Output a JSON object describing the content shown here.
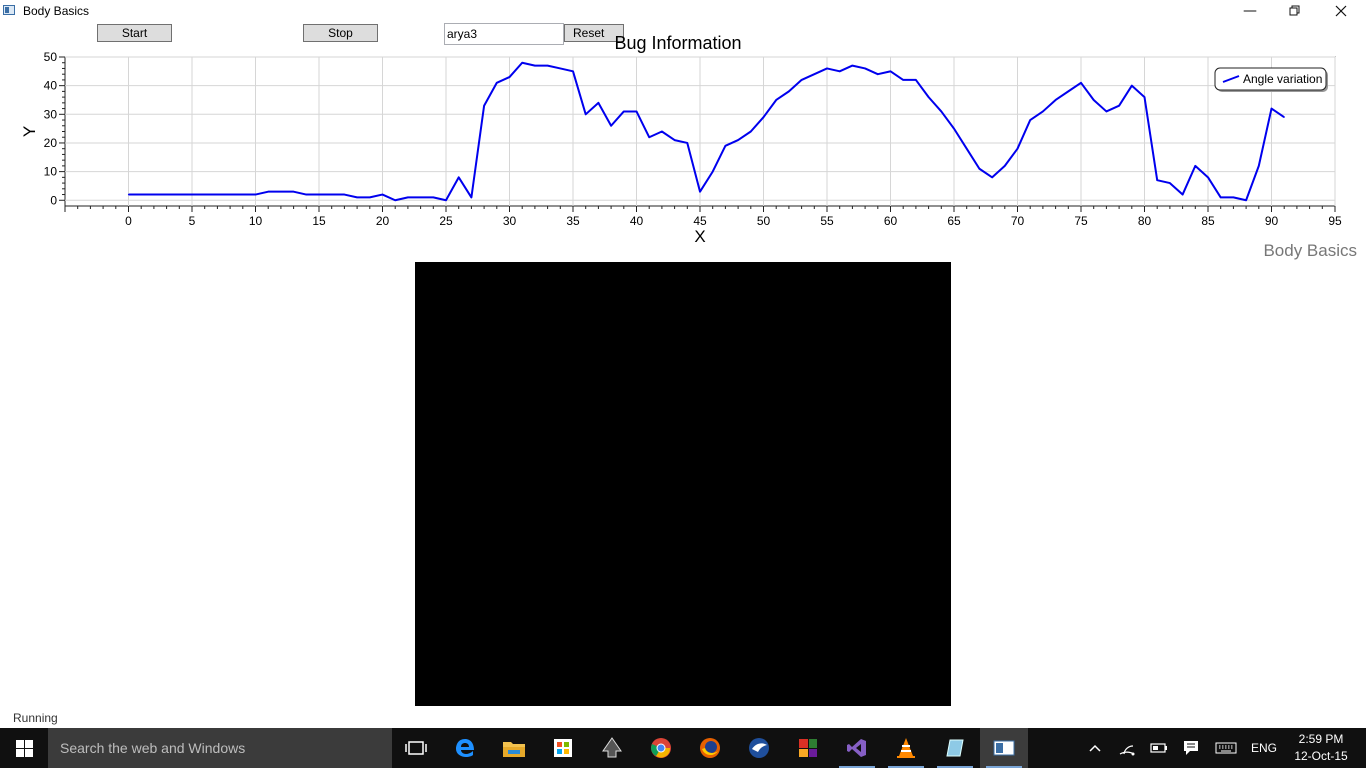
{
  "window": {
    "title": "Body Basics"
  },
  "toolbar": {
    "start_label": "Start",
    "stop_label": "Stop",
    "name_value": "arya3",
    "reset_label": "Reset"
  },
  "chart_data": {
    "type": "line",
    "title": "Bug Information",
    "xlabel": "X",
    "ylabel": "Y",
    "xlim": [
      -5,
      95
    ],
    "ylim": [
      -2,
      50
    ],
    "xticks": [
      0,
      5,
      10,
      15,
      20,
      25,
      30,
      35,
      40,
      45,
      50,
      55,
      60,
      65,
      70,
      75,
      80,
      85,
      90,
      95
    ],
    "yticks": [
      0,
      10,
      20,
      30,
      40,
      50
    ],
    "grid": true,
    "legend_position": "top-right",
    "series": [
      {
        "name": "Angle variation",
        "color": "#0000ee",
        "x": [
          0,
          1,
          2,
          3,
          4,
          5,
          6,
          7,
          8,
          9,
          10,
          11,
          12,
          13,
          14,
          15,
          16,
          17,
          18,
          19,
          20,
          21,
          22,
          23,
          24,
          25,
          26,
          27,
          28,
          29,
          30,
          31,
          32,
          33,
          34,
          35,
          36,
          37,
          38,
          39,
          40,
          41,
          42,
          43,
          44,
          45,
          46,
          47,
          48,
          49,
          50,
          51,
          52,
          53,
          54,
          55,
          56,
          57,
          58,
          59,
          60,
          61,
          62,
          63,
          64,
          65,
          66,
          67,
          68,
          69,
          70,
          71,
          72,
          73,
          74,
          75,
          76,
          77,
          78,
          79,
          80,
          81,
          82,
          83,
          84,
          85,
          86,
          87,
          88,
          89,
          90,
          91
        ],
        "y": [
          2,
          2,
          2,
          2,
          2,
          2,
          2,
          2,
          2,
          2,
          2,
          3,
          3,
          3,
          2,
          2,
          2,
          2,
          1,
          1,
          2,
          0,
          1,
          1,
          1,
          0,
          8,
          1,
          33,
          41,
          43,
          48,
          47,
          47,
          46,
          45,
          30,
          34,
          26,
          31,
          31,
          22,
          24,
          21,
          20,
          3,
          10,
          19,
          21,
          24,
          29,
          35,
          38,
          42,
          44,
          46,
          45,
          47,
          46,
          44,
          45,
          42,
          42,
          36,
          31,
          25,
          18,
          11,
          8,
          12,
          18,
          28,
          31,
          35,
          38,
          41,
          35,
          31,
          33,
          40,
          36,
          7,
          6,
          2,
          12,
          8,
          1,
          1,
          0,
          12,
          32,
          29
        ]
      }
    ]
  },
  "side_label": "Body Basics",
  "status": {
    "text": "Running"
  },
  "taskbar": {
    "search_placeholder": "Search the web and Windows",
    "language": "ENG",
    "time": "2:59 PM",
    "date": "12-Oct-15"
  }
}
